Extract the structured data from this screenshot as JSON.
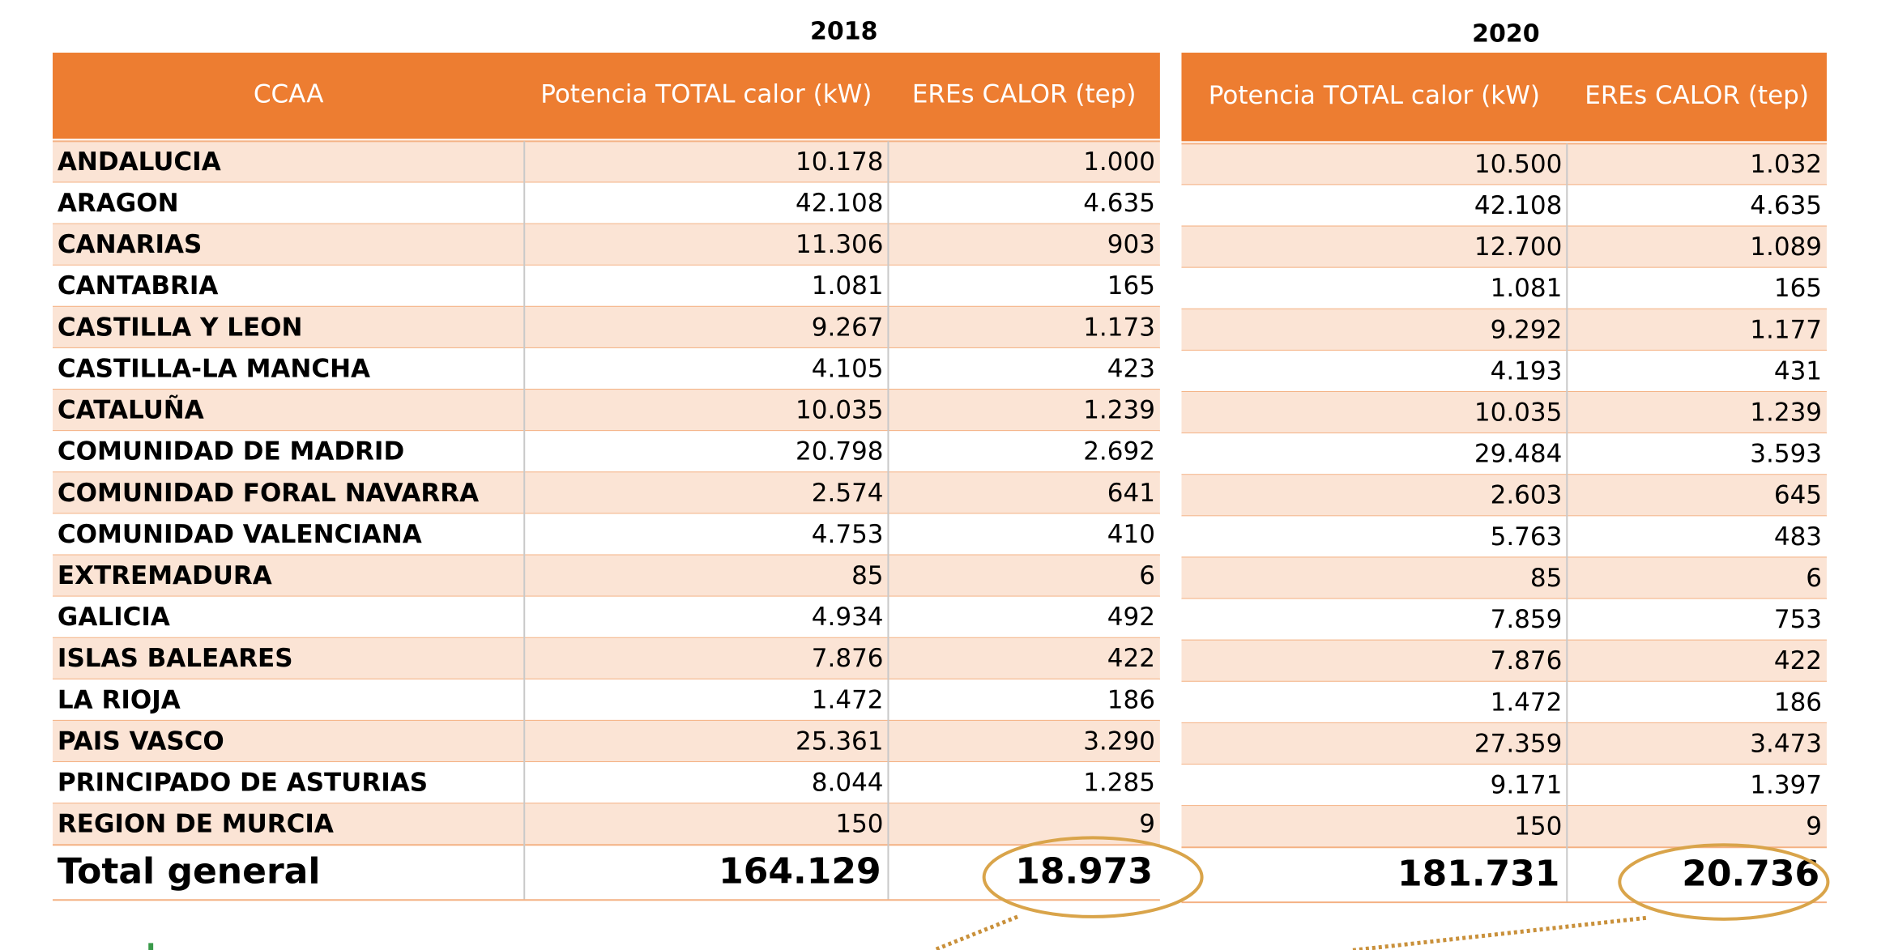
{
  "tables": [
    {
      "year": "2018",
      "header": [
        "CCAA",
        "Potencia TOTAL calor (kW)",
        "EREs CALOR (tep)"
      ],
      "rows": [
        [
          "ANDALUCIA",
          "10.178",
          "1.000"
        ],
        [
          "ARAGON",
          "42.108",
          "4.635"
        ],
        [
          "CANARIAS",
          "11.306",
          "903"
        ],
        [
          "CANTABRIA",
          "1.081",
          "165"
        ],
        [
          "CASTILLA Y LEON",
          "9.267",
          "1.173"
        ],
        [
          "CASTILLA-LA MANCHA",
          "4.105",
          "423"
        ],
        [
          "CATALUÑA",
          "10.035",
          "1.239"
        ],
        [
          "COMUNIDAD DE MADRID",
          "20.798",
          "2.692"
        ],
        [
          "COMUNIDAD FORAL NAVARRA",
          "2.574",
          "641"
        ],
        [
          "COMUNIDAD VALENCIANA",
          "4.753",
          "410"
        ],
        [
          "EXTREMADURA",
          "85",
          "6"
        ],
        [
          "GALICIA",
          "4.934",
          "492"
        ],
        [
          "ISLAS BALEARES",
          "7.876",
          "422"
        ],
        [
          "LA RIOJA",
          "1.472",
          "186"
        ],
        [
          "PAIS VASCO",
          "25.361",
          "3.290"
        ],
        [
          "PRINCIPADO DE ASTURIAS",
          "8.044",
          "1.285"
        ],
        [
          "REGION DE MURCIA",
          "150",
          "9"
        ]
      ],
      "total": [
        "Total general",
        "164.129",
        "18.973"
      ]
    },
    {
      "year": "2020",
      "header": [
        "Potencia TOTAL calor  (kW)",
        "EREs CALOR (tep)"
      ],
      "rows": [
        [
          "10.500",
          "1.032"
        ],
        [
          "42.108",
          "4.635"
        ],
        [
          "12.700",
          "1.089"
        ],
        [
          "1.081",
          "165"
        ],
        [
          "9.292",
          "1.177"
        ],
        [
          "4.193",
          "431"
        ],
        [
          "10.035",
          "1.239"
        ],
        [
          "29.484",
          "3.593"
        ],
        [
          "2.603",
          "645"
        ],
        [
          "5.763",
          "483"
        ],
        [
          "85",
          "6"
        ],
        [
          "7.859",
          "753"
        ],
        [
          "7.876",
          "422"
        ],
        [
          "1.472",
          "186"
        ],
        [
          "27.359",
          "3.473"
        ],
        [
          "9.171",
          "1.397"
        ],
        [
          "150",
          "9"
        ]
      ],
      "total": [
        "181.731",
        "20.736"
      ]
    }
  ]
}
